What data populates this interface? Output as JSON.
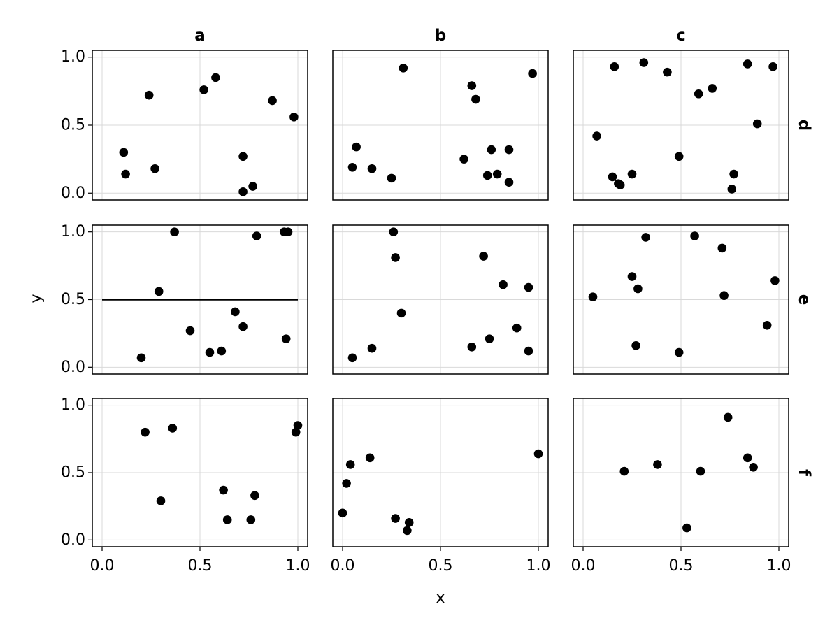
{
  "chart_data": {
    "type": "scatter",
    "xlabel": "x",
    "ylabel": "y",
    "xlim": [
      -0.05,
      1.05
    ],
    "ylim": [
      -0.05,
      1.05
    ],
    "xticks": [
      "0.0",
      "0.5",
      "1.0"
    ],
    "yticks": [
      "0.0",
      "0.5",
      "1.0"
    ],
    "grid": true,
    "col_labels": [
      "a",
      "b",
      "c"
    ],
    "row_labels": [
      "d",
      "e",
      "f"
    ],
    "panels": [
      {
        "row": "d",
        "col": "a",
        "points": [
          [
            0.11,
            0.3
          ],
          [
            0.12,
            0.14
          ],
          [
            0.24,
            0.72
          ],
          [
            0.27,
            0.18
          ],
          [
            0.52,
            0.76
          ],
          [
            0.58,
            0.85
          ],
          [
            0.72,
            0.27
          ],
          [
            0.72,
            0.01
          ],
          [
            0.77,
            0.05
          ],
          [
            0.87,
            0.68
          ],
          [
            0.98,
            0.56
          ]
        ]
      },
      {
        "row": "d",
        "col": "b",
        "points": [
          [
            0.05,
            0.19
          ],
          [
            0.07,
            0.34
          ],
          [
            0.15,
            0.18
          ],
          [
            0.25,
            0.11
          ],
          [
            0.31,
            0.92
          ],
          [
            0.62,
            0.25
          ],
          [
            0.66,
            0.79
          ],
          [
            0.68,
            0.69
          ],
          [
            0.74,
            0.13
          ],
          [
            0.76,
            0.32
          ],
          [
            0.79,
            0.14
          ],
          [
            0.85,
            0.32
          ],
          [
            0.85,
            0.08
          ],
          [
            0.97,
            0.88
          ]
        ]
      },
      {
        "row": "d",
        "col": "c",
        "points": [
          [
            0.07,
            0.42
          ],
          [
            0.15,
            0.12
          ],
          [
            0.16,
            0.93
          ],
          [
            0.18,
            0.07
          ],
          [
            0.19,
            0.06
          ],
          [
            0.25,
            0.14
          ],
          [
            0.31,
            0.96
          ],
          [
            0.43,
            0.89
          ],
          [
            0.49,
            0.27
          ],
          [
            0.59,
            0.73
          ],
          [
            0.66,
            0.77
          ],
          [
            0.76,
            0.03
          ],
          [
            0.77,
            0.14
          ],
          [
            0.84,
            0.95
          ],
          [
            0.89,
            0.51
          ],
          [
            0.97,
            0.93
          ]
        ]
      },
      {
        "row": "e",
        "col": "a",
        "points": [
          [
            0.2,
            0.07
          ],
          [
            0.29,
            0.56
          ],
          [
            0.37,
            1.0
          ],
          [
            0.45,
            0.27
          ],
          [
            0.55,
            0.11
          ],
          [
            0.61,
            0.12
          ],
          [
            0.68,
            0.41
          ],
          [
            0.72,
            0.3
          ],
          [
            0.79,
            0.97
          ],
          [
            0.93,
            1.0
          ],
          [
            0.95,
            1.0
          ],
          [
            0.94,
            0.21
          ]
        ],
        "hline": 0.5
      },
      {
        "row": "e",
        "col": "b",
        "points": [
          [
            0.05,
            0.07
          ],
          [
            0.15,
            0.14
          ],
          [
            0.26,
            1.0
          ],
          [
            0.27,
            0.81
          ],
          [
            0.3,
            0.4
          ],
          [
            0.66,
            0.15
          ],
          [
            0.72,
            0.82
          ],
          [
            0.75,
            0.21
          ],
          [
            0.82,
            0.61
          ],
          [
            0.89,
            0.29
          ],
          [
            0.95,
            0.59
          ],
          [
            0.95,
            0.12
          ]
        ]
      },
      {
        "row": "e",
        "col": "c",
        "points": [
          [
            0.05,
            0.52
          ],
          [
            0.25,
            0.67
          ],
          [
            0.27,
            0.16
          ],
          [
            0.28,
            0.58
          ],
          [
            0.32,
            0.96
          ],
          [
            0.49,
            0.11
          ],
          [
            0.57,
            0.97
          ],
          [
            0.71,
            0.88
          ],
          [
            0.72,
            0.53
          ],
          [
            0.94,
            0.31
          ],
          [
            0.98,
            0.64
          ]
        ]
      },
      {
        "row": "f",
        "col": "a",
        "points": [
          [
            0.22,
            0.8
          ],
          [
            0.3,
            0.29
          ],
          [
            0.36,
            0.83
          ],
          [
            0.62,
            0.37
          ],
          [
            0.64,
            0.15
          ],
          [
            0.76,
            0.15
          ],
          [
            0.78,
            0.33
          ],
          [
            0.99,
            0.8
          ],
          [
            1.0,
            0.85
          ]
        ]
      },
      {
        "row": "f",
        "col": "b",
        "points": [
          [
            0.0,
            0.2
          ],
          [
            0.02,
            0.42
          ],
          [
            0.04,
            0.56
          ],
          [
            0.14,
            0.61
          ],
          [
            0.27,
            0.16
          ],
          [
            0.33,
            0.07
          ],
          [
            0.34,
            0.13
          ],
          [
            1.0,
            0.64
          ]
        ]
      },
      {
        "row": "f",
        "col": "c",
        "points": [
          [
            0.21,
            0.51
          ],
          [
            0.38,
            0.56
          ],
          [
            0.53,
            0.09
          ],
          [
            0.6,
            0.51
          ],
          [
            0.74,
            0.91
          ],
          [
            0.84,
            0.61
          ],
          [
            0.87,
            0.54
          ]
        ]
      }
    ]
  }
}
